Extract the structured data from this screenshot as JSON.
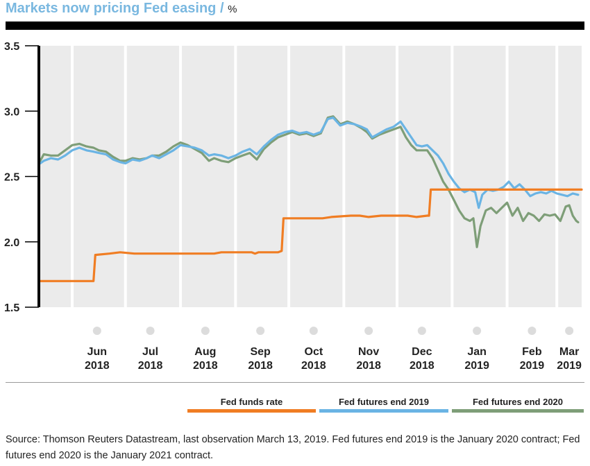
{
  "title": "Markets now pricing Fed easing / ",
  "unit": "%",
  "source": "Source: Thomson Reuters Datastream, last observation March 13, 2019. Fed futures end 2019 is the January 2020 contract; Fed futures end 2020 is the January 2021 contract.",
  "colors": {
    "fed_funds": "#f07d23",
    "futures_2019": "#6ab4e4",
    "futures_2020": "#7e9e78",
    "band_light": "#ebebeb",
    "band_white": "#ffffff"
  },
  "chart_data": {
    "type": "line",
    "title": "Markets now pricing Fed easing",
    "ylabel": "%",
    "ylim": [
      1.5,
      3.5
    ],
    "y_ticks": [
      "3.5",
      "3.0",
      "2.5",
      "2.0",
      "1.5"
    ],
    "x_ticks": [
      {
        "month": "Jun",
        "year": "2018"
      },
      {
        "month": "Jul",
        "year": "2018"
      },
      {
        "month": "Aug",
        "year": "2018"
      },
      {
        "month": "Sep",
        "year": "2018"
      },
      {
        "month": "Oct",
        "year": "2018"
      },
      {
        "month": "Nov",
        "year": "2018"
      },
      {
        "month": "Dec",
        "year": "2018"
      },
      {
        "month": "Jan",
        "year": "2019"
      },
      {
        "month": "Feb",
        "year": "2019"
      },
      {
        "month": "Mar",
        "year": "2019"
      }
    ],
    "xlim": [
      "2018-05-14",
      "2019-03-15"
    ],
    "legend_position": "bottom",
    "series": [
      {
        "name": "Fed funds rate",
        "points": [
          [
            "2018-05-14",
            1.7
          ],
          [
            "2018-06-13",
            1.7
          ],
          [
            "2018-06-14",
            1.9
          ],
          [
            "2018-06-22",
            1.91
          ],
          [
            "2018-06-28",
            1.92
          ],
          [
            "2018-07-06",
            1.91
          ],
          [
            "2018-07-31",
            1.91
          ],
          [
            "2018-08-20",
            1.91
          ],
          [
            "2018-08-24",
            1.92
          ],
          [
            "2018-09-10",
            1.92
          ],
          [
            "2018-09-12",
            1.91
          ],
          [
            "2018-09-14",
            1.92
          ],
          [
            "2018-09-25",
            1.92
          ],
          [
            "2018-09-27",
            1.93
          ],
          [
            "2018-09-28",
            2.18
          ],
          [
            "2018-10-20",
            2.18
          ],
          [
            "2018-10-25",
            2.19
          ],
          [
            "2018-11-05",
            2.2
          ],
          [
            "2018-11-10",
            2.2
          ],
          [
            "2018-11-15",
            2.19
          ],
          [
            "2018-11-22",
            2.2
          ],
          [
            "2018-12-07",
            2.2
          ],
          [
            "2018-12-12",
            2.19
          ],
          [
            "2018-12-18",
            2.2
          ],
          [
            "2018-12-19",
            2.2
          ],
          [
            "2018-12-20",
            2.4
          ],
          [
            "2019-03-15",
            2.4
          ]
        ]
      },
      {
        "name": "Fed futures end 2019",
        "points": [
          [
            "2018-05-14",
            2.6
          ],
          [
            "2018-05-16",
            2.62
          ],
          [
            "2018-05-20",
            2.64
          ],
          [
            "2018-05-24",
            2.63
          ],
          [
            "2018-05-28",
            2.66
          ],
          [
            "2018-06-01",
            2.7
          ],
          [
            "2018-06-05",
            2.72
          ],
          [
            "2018-06-09",
            2.7
          ],
          [
            "2018-06-13",
            2.69
          ],
          [
            "2018-06-16",
            2.68
          ],
          [
            "2018-06-20",
            2.67
          ],
          [
            "2018-06-24",
            2.63
          ],
          [
            "2018-06-28",
            2.61
          ],
          [
            "2018-07-01",
            2.6
          ],
          [
            "2018-07-05",
            2.63
          ],
          [
            "2018-07-09",
            2.62
          ],
          [
            "2018-07-13",
            2.64
          ],
          [
            "2018-07-16",
            2.66
          ],
          [
            "2018-07-20",
            2.64
          ],
          [
            "2018-07-24",
            2.67
          ],
          [
            "2018-07-28",
            2.7
          ],
          [
            "2018-08-01",
            2.74
          ],
          [
            "2018-08-05",
            2.73
          ],
          [
            "2018-08-09",
            2.72
          ],
          [
            "2018-08-13",
            2.7
          ],
          [
            "2018-08-17",
            2.66
          ],
          [
            "2018-08-20",
            2.67
          ],
          [
            "2018-08-24",
            2.66
          ],
          [
            "2018-08-28",
            2.64
          ],
          [
            "2018-09-01",
            2.66
          ],
          [
            "2018-09-05",
            2.69
          ],
          [
            "2018-09-09",
            2.71
          ],
          [
            "2018-09-13",
            2.67
          ],
          [
            "2018-09-17",
            2.73
          ],
          [
            "2018-09-21",
            2.78
          ],
          [
            "2018-09-25",
            2.82
          ],
          [
            "2018-09-29",
            2.84
          ],
          [
            "2018-10-03",
            2.85
          ],
          [
            "2018-10-07",
            2.83
          ],
          [
            "2018-10-11",
            2.84
          ],
          [
            "2018-10-15",
            2.82
          ],
          [
            "2018-10-19",
            2.84
          ],
          [
            "2018-10-23",
            2.94
          ],
          [
            "2018-10-26",
            2.95
          ],
          [
            "2018-10-30",
            2.89
          ],
          [
            "2018-11-03",
            2.91
          ],
          [
            "2018-11-07",
            2.9
          ],
          [
            "2018-11-11",
            2.88
          ],
          [
            "2018-11-14",
            2.86
          ],
          [
            "2018-11-17",
            2.8
          ],
          [
            "2018-11-21",
            2.83
          ],
          [
            "2018-11-25",
            2.86
          ],
          [
            "2018-11-29",
            2.88
          ],
          [
            "2018-12-03",
            2.92
          ],
          [
            "2018-12-06",
            2.86
          ],
          [
            "2018-12-09",
            2.8
          ],
          [
            "2018-12-12",
            2.74
          ],
          [
            "2018-12-15",
            2.73
          ],
          [
            "2018-12-18",
            2.74
          ],
          [
            "2018-12-21",
            2.7
          ],
          [
            "2018-12-24",
            2.66
          ],
          [
            "2018-12-27",
            2.6
          ],
          [
            "2018-12-30",
            2.52
          ],
          [
            "2019-01-02",
            2.46
          ],
          [
            "2019-01-05",
            2.41
          ],
          [
            "2019-01-08",
            2.38
          ],
          [
            "2019-01-11",
            2.4
          ],
          [
            "2019-01-14",
            2.38
          ],
          [
            "2019-01-16",
            2.26
          ],
          [
            "2019-01-18",
            2.36
          ],
          [
            "2019-01-21",
            2.4
          ],
          [
            "2019-01-24",
            2.39
          ],
          [
            "2019-01-27",
            2.4
          ],
          [
            "2019-01-30",
            2.42
          ],
          [
            "2019-02-02",
            2.46
          ],
          [
            "2019-02-05",
            2.41
          ],
          [
            "2019-02-08",
            2.44
          ],
          [
            "2019-02-11",
            2.4
          ],
          [
            "2019-02-14",
            2.35
          ],
          [
            "2019-02-17",
            2.37
          ],
          [
            "2019-02-20",
            2.38
          ],
          [
            "2019-02-23",
            2.37
          ],
          [
            "2019-02-26",
            2.39
          ],
          [
            "2019-03-01",
            2.37
          ],
          [
            "2019-03-04",
            2.36
          ],
          [
            "2019-03-07",
            2.35
          ],
          [
            "2019-03-10",
            2.37
          ],
          [
            "2019-03-13",
            2.36
          ]
        ]
      },
      {
        "name": "Fed futures end 2020",
        "points": [
          [
            "2018-05-14",
            2.62
          ],
          [
            "2018-05-16",
            2.67
          ],
          [
            "2018-05-20",
            2.66
          ],
          [
            "2018-05-24",
            2.66
          ],
          [
            "2018-05-28",
            2.7
          ],
          [
            "2018-06-01",
            2.74
          ],
          [
            "2018-06-05",
            2.75
          ],
          [
            "2018-06-09",
            2.73
          ],
          [
            "2018-06-13",
            2.72
          ],
          [
            "2018-06-16",
            2.7
          ],
          [
            "2018-06-20",
            2.69
          ],
          [
            "2018-06-24",
            2.65
          ],
          [
            "2018-06-28",
            2.62
          ],
          [
            "2018-07-01",
            2.62
          ],
          [
            "2018-07-05",
            2.64
          ],
          [
            "2018-07-09",
            2.63
          ],
          [
            "2018-07-13",
            2.64
          ],
          [
            "2018-07-16",
            2.66
          ],
          [
            "2018-07-20",
            2.66
          ],
          [
            "2018-07-24",
            2.69
          ],
          [
            "2018-07-28",
            2.73
          ],
          [
            "2018-08-01",
            2.76
          ],
          [
            "2018-08-05",
            2.74
          ],
          [
            "2018-08-09",
            2.71
          ],
          [
            "2018-08-13",
            2.68
          ],
          [
            "2018-08-17",
            2.62
          ],
          [
            "2018-08-20",
            2.64
          ],
          [
            "2018-08-24",
            2.62
          ],
          [
            "2018-08-28",
            2.61
          ],
          [
            "2018-09-01",
            2.64
          ],
          [
            "2018-09-05",
            2.66
          ],
          [
            "2018-09-09",
            2.68
          ],
          [
            "2018-09-13",
            2.63
          ],
          [
            "2018-09-17",
            2.71
          ],
          [
            "2018-09-21",
            2.76
          ],
          [
            "2018-09-25",
            2.8
          ],
          [
            "2018-09-29",
            2.82
          ],
          [
            "2018-10-03",
            2.84
          ],
          [
            "2018-10-07",
            2.82
          ],
          [
            "2018-10-11",
            2.83
          ],
          [
            "2018-10-15",
            2.81
          ],
          [
            "2018-10-19",
            2.83
          ],
          [
            "2018-10-23",
            2.95
          ],
          [
            "2018-10-26",
            2.96
          ],
          [
            "2018-10-30",
            2.9
          ],
          [
            "2018-11-03",
            2.92
          ],
          [
            "2018-11-07",
            2.9
          ],
          [
            "2018-11-11",
            2.87
          ],
          [
            "2018-11-14",
            2.84
          ],
          [
            "2018-11-17",
            2.79
          ],
          [
            "2018-11-21",
            2.82
          ],
          [
            "2018-11-25",
            2.84
          ],
          [
            "2018-11-29",
            2.86
          ],
          [
            "2018-12-03",
            2.88
          ],
          [
            "2018-12-06",
            2.8
          ],
          [
            "2018-12-09",
            2.74
          ],
          [
            "2018-12-12",
            2.7
          ],
          [
            "2018-12-15",
            2.7
          ],
          [
            "2018-12-18",
            2.7
          ],
          [
            "2018-12-21",
            2.64
          ],
          [
            "2018-12-24",
            2.55
          ],
          [
            "2018-12-27",
            2.46
          ],
          [
            "2018-12-30",
            2.4
          ],
          [
            "2019-01-02",
            2.32
          ],
          [
            "2019-01-05",
            2.24
          ],
          [
            "2019-01-08",
            2.18
          ],
          [
            "2019-01-11",
            2.16
          ],
          [
            "2019-01-13",
            2.18
          ],
          [
            "2019-01-15",
            1.96
          ],
          [
            "2019-01-17",
            2.12
          ],
          [
            "2019-01-20",
            2.24
          ],
          [
            "2019-01-23",
            2.26
          ],
          [
            "2019-01-26",
            2.22
          ],
          [
            "2019-01-29",
            2.26
          ],
          [
            "2019-02-01",
            2.3
          ],
          [
            "2019-02-04",
            2.2
          ],
          [
            "2019-02-07",
            2.26
          ],
          [
            "2019-02-10",
            2.16
          ],
          [
            "2019-02-13",
            2.22
          ],
          [
            "2019-02-16",
            2.2
          ],
          [
            "2019-02-19",
            2.16
          ],
          [
            "2019-02-22",
            2.21
          ],
          [
            "2019-02-25",
            2.2
          ],
          [
            "2019-02-28",
            2.21
          ],
          [
            "2019-03-03",
            2.16
          ],
          [
            "2019-03-06",
            2.27
          ],
          [
            "2019-03-08",
            2.28
          ],
          [
            "2019-03-10",
            2.2
          ],
          [
            "2019-03-12",
            2.16
          ],
          [
            "2019-03-13",
            2.15
          ]
        ]
      }
    ]
  }
}
